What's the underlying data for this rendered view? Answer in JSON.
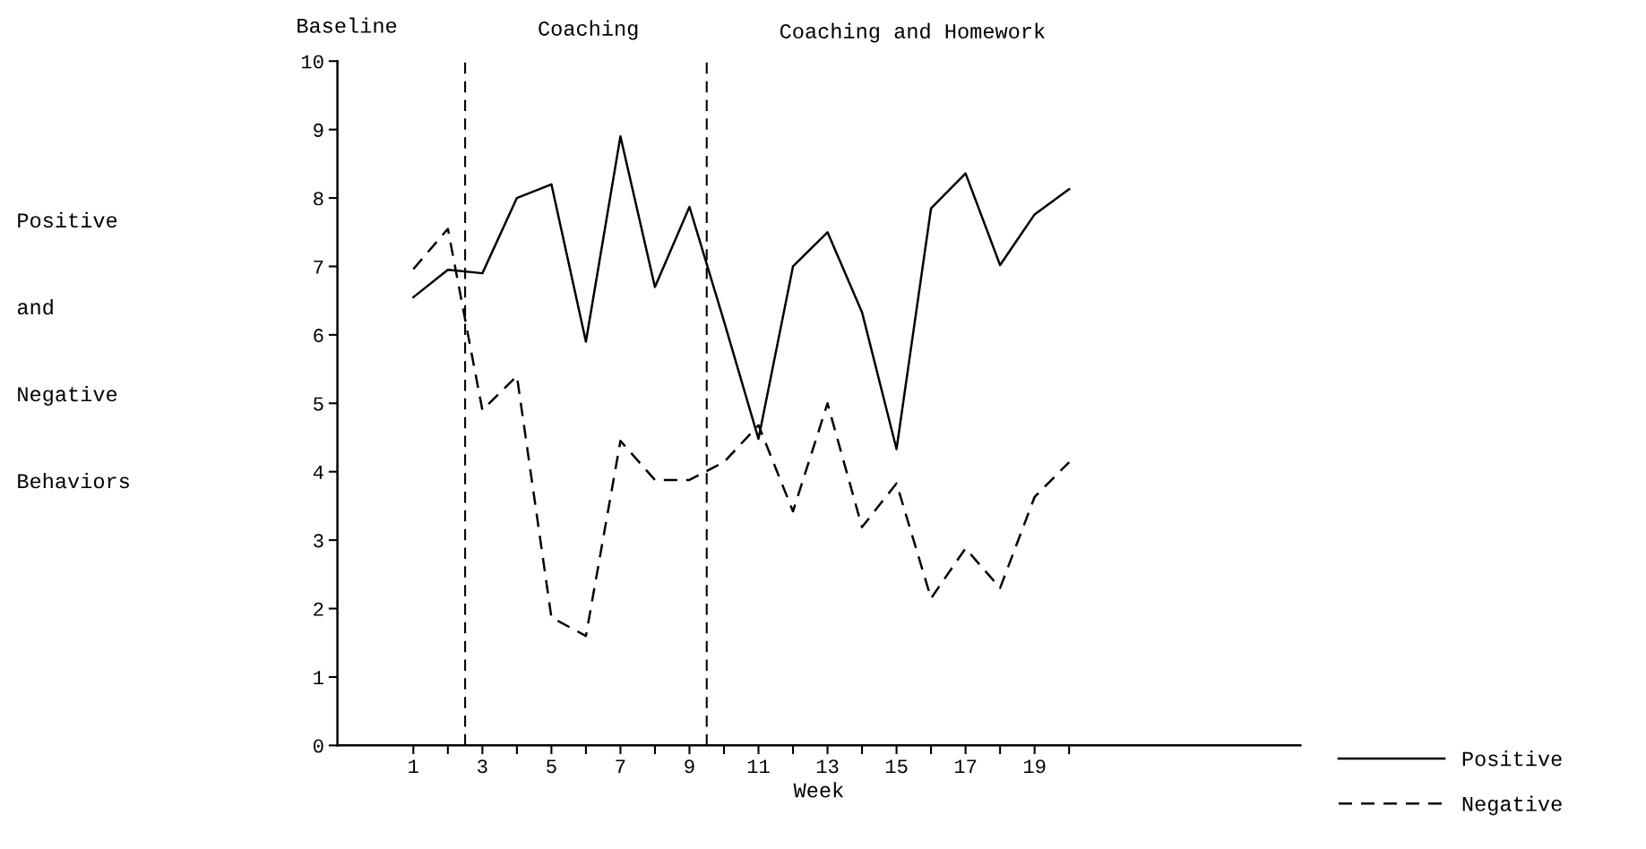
{
  "chart_data": {
    "type": "line",
    "xlabel": "Week",
    "ylabel": "Positive and Negative Behaviors",
    "x": [
      1,
      2,
      3,
      4,
      5,
      6,
      7,
      8,
      9,
      10,
      11,
      12,
      13,
      14,
      15,
      16,
      17,
      18,
      19,
      20
    ],
    "series": [
      {
        "name": "Positive",
        "color": "#000000",
        "line_style": "solid",
        "values": [
          6.55,
          6.95,
          6.9,
          8.0,
          8.2,
          5.9,
          8.9,
          6.7,
          7.87,
          6.2,
          4.48,
          7.0,
          7.5,
          6.33,
          4.33,
          7.85,
          8.36,
          7.02,
          7.76,
          8.13
        ]
      },
      {
        "name": "Negative",
        "color": "#000000",
        "line_style": "dashed",
        "values": [
          6.96,
          7.55,
          4.9,
          5.4,
          1.87,
          1.6,
          4.45,
          3.88,
          3.88,
          4.14,
          4.68,
          3.42,
          5.0,
          3.19,
          3.83,
          2.15,
          2.88,
          2.3,
          3.63,
          4.14
        ]
      }
    ],
    "xlim": [
      -1.2,
      26.7
    ],
    "ylim": [
      0,
      10
    ],
    "xticks": [
      1,
      {
        "value": 2,
        "label": null
      },
      3,
      {
        "value": 4,
        "label": null
      },
      5,
      {
        "value": 6,
        "label": null
      },
      7,
      {
        "value": 8,
        "label": null
      },
      9,
      {
        "value": 10,
        "label": null
      },
      11,
      {
        "value": 12,
        "label": null
      },
      13,
      {
        "value": 14,
        "label": null
      },
      15,
      {
        "value": 16,
        "label": null
      },
      17,
      {
        "value": 18,
        "label": null
      },
      19,
      {
        "value": 20,
        "label": null
      }
    ],
    "yticks": [
      0,
      1,
      2,
      3,
      4,
      5,
      6,
      7,
      8,
      9,
      10
    ],
    "ref_lines": [
      {
        "axis": "x",
        "value": 2.5,
        "color": "#000000",
        "line_style": "dashed"
      },
      {
        "axis": "x",
        "value": 9.5,
        "color": "#000000",
        "line_style": "dashed"
      }
    ],
    "annotations": [
      "Baseline",
      "Coaching",
      "Coaching and Homework"
    ],
    "legend": "bottom right",
    "grid": false,
    "marker": "none"
  }
}
